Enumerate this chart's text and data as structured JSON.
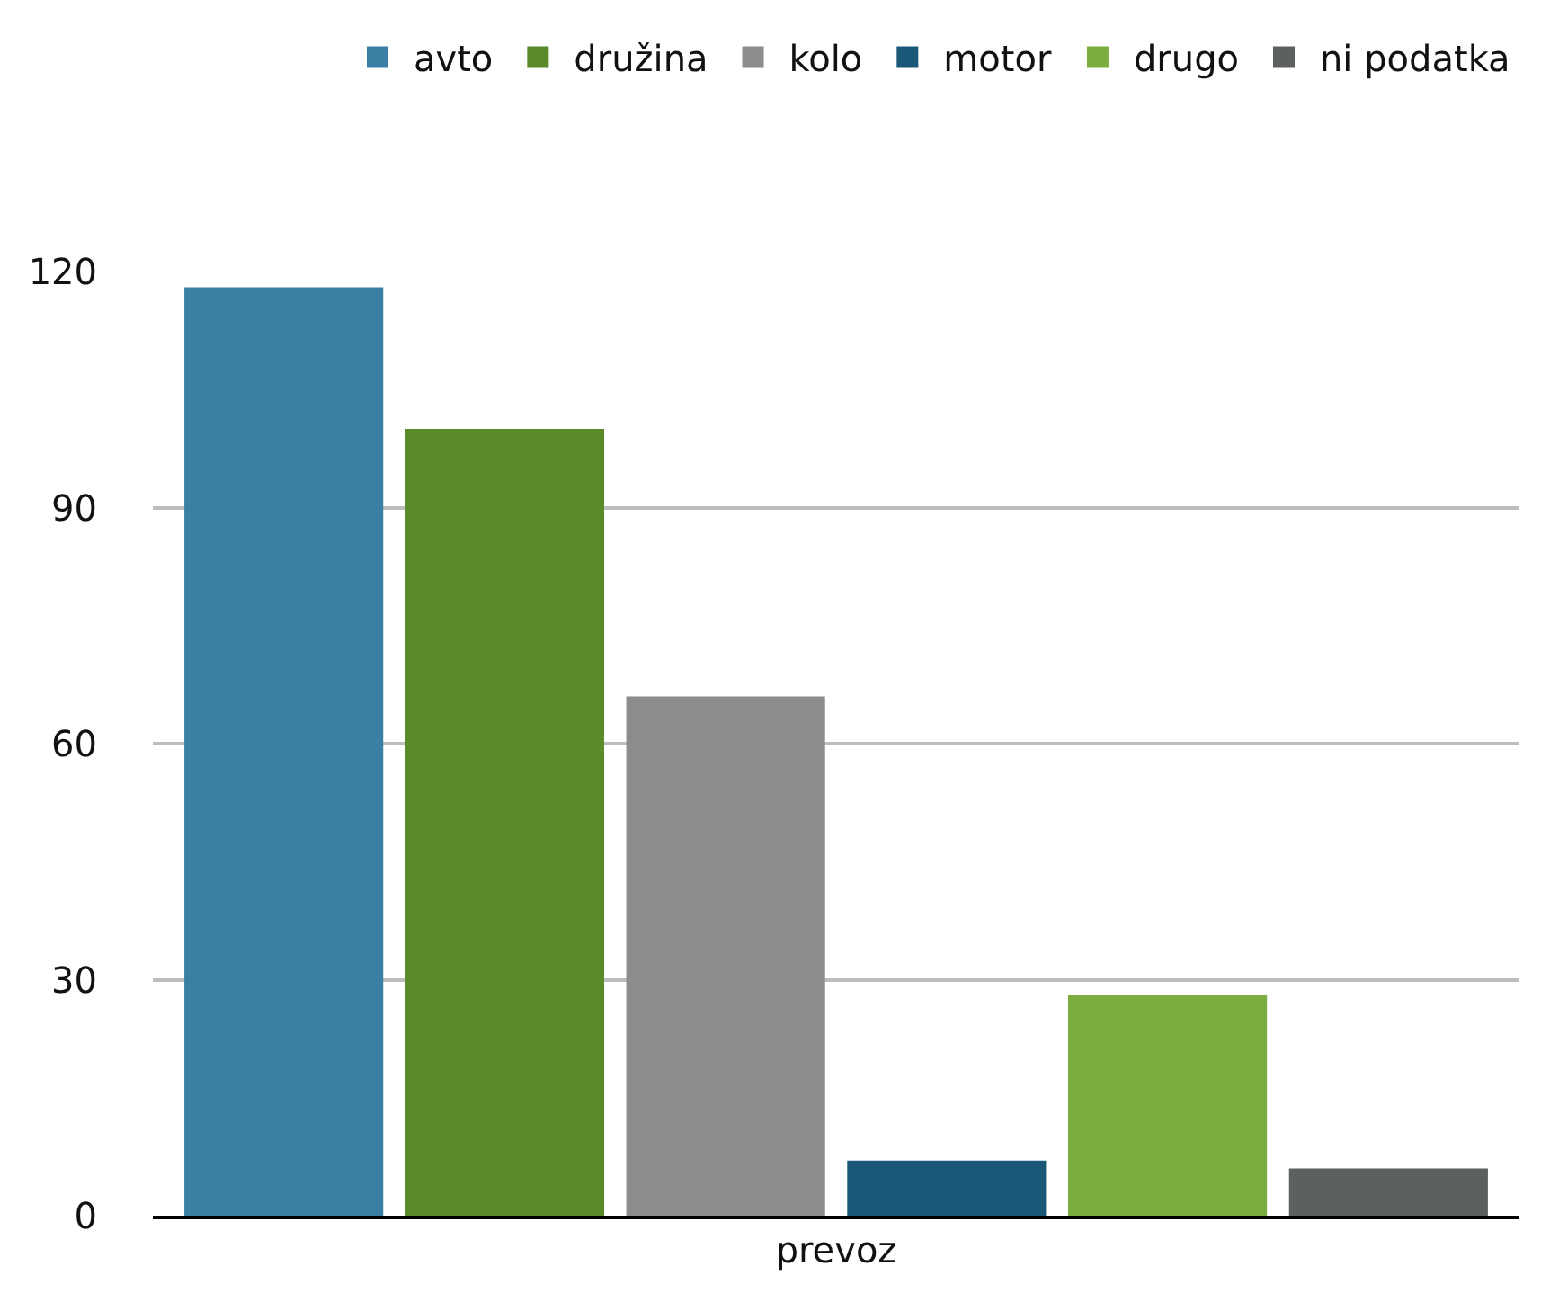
{
  "chart_data": {
    "type": "bar",
    "categories": [
      "prevoz"
    ],
    "series": [
      {
        "name": "avto",
        "color": "#3a80a5",
        "values": [
          118
        ]
      },
      {
        "name": "družina",
        "color": "#5a8a2a",
        "values": [
          100
        ]
      },
      {
        "name": "kolo",
        "color": "#8c8c8c",
        "values": [
          66
        ]
      },
      {
        "name": "motor",
        "color": "#1b5878",
        "values": [
          7
        ]
      },
      {
        "name": "drugo",
        "color": "#7bae3e",
        "values": [
          28
        ]
      },
      {
        "name": "ni podatka",
        "color": "#5c605f",
        "values": [
          6
        ]
      }
    ],
    "ylim": [
      0,
      120
    ],
    "yticks": [
      0,
      30,
      60,
      90,
      120
    ],
    "grid": "y",
    "legend": "top right"
  }
}
